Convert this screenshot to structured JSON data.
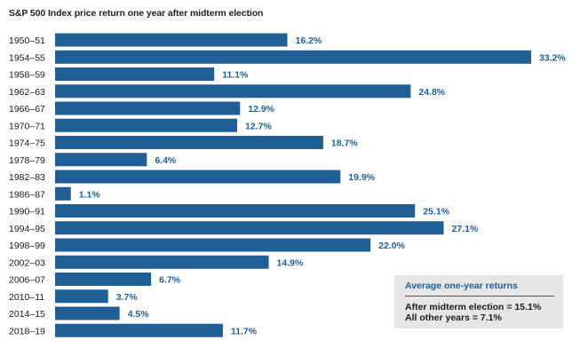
{
  "colors": {
    "bar": "#1f5f96",
    "value_text": "#1f5f96",
    "title_text": "#222222",
    "box_bg": "#e6e6e6",
    "box_title": "#1f5f96"
  },
  "chart_data": {
    "type": "bar",
    "orientation": "horizontal",
    "title": "S&P 500 Index price return one year after midterm election",
    "categories": [
      "1950–51",
      "1954–55",
      "1958–59",
      "1962–63",
      "1966–67",
      "1970–71",
      "1974–75",
      "1978–79",
      "1982–83",
      "1986–87",
      "1990–91",
      "1994–95",
      "1998–99",
      "2002–03",
      "2006–07",
      "2010–11",
      "2014–15",
      "2018–19"
    ],
    "values": [
      16.2,
      33.2,
      11.1,
      24.8,
      12.9,
      12.7,
      18.7,
      6.4,
      19.9,
      1.1,
      25.1,
      27.1,
      22.0,
      14.9,
      6.7,
      3.7,
      4.5,
      11.7
    ],
    "value_labels": [
      "16.2%",
      "33.2%",
      "11.1%",
      "24.8%",
      "12.9%",
      "12.7%",
      "18.7%",
      "6.4%",
      "19.9%",
      "1.1%",
      "25.1%",
      "27.1%",
      "22.0%",
      "14.9%",
      "6.7%",
      "3.7%",
      "4.5%",
      "11.7%"
    ],
    "xlim": [
      0,
      33.2
    ],
    "grid": false,
    "legend": "none"
  },
  "summary_box": {
    "title": "Average one-year returns",
    "line1": "After midterm election = 15.1%",
    "line2": "All other years = 7.1%"
  }
}
